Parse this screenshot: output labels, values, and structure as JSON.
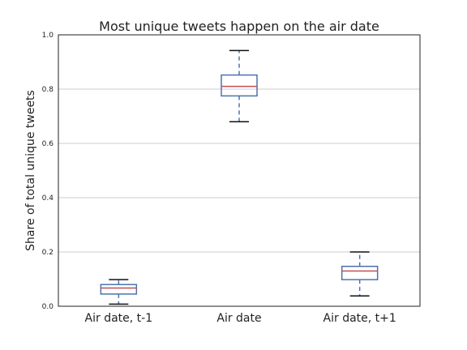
{
  "chart_data": {
    "type": "box",
    "title": "Most unique tweets happen on the air date",
    "xlabel": "",
    "ylabel": "Share of total unique tweets",
    "ylim": [
      0.0,
      1.0
    ],
    "yticks": [
      "0.0",
      "0.2",
      "0.4",
      "0.6",
      "0.8",
      "1.0"
    ],
    "grid": "horizontal",
    "categories": [
      "Air date, t-1",
      "Air date",
      "Air date, t+1"
    ],
    "boxes": [
      {
        "whisker_low": 0.008,
        "q1": 0.045,
        "median": 0.067,
        "q3": 0.08,
        "whisker_high": 0.098
      },
      {
        "whisker_low": 0.68,
        "q1": 0.775,
        "median": 0.81,
        "q3": 0.852,
        "whisker_high": 0.942
      },
      {
        "whisker_low": 0.038,
        "q1": 0.098,
        "median": 0.13,
        "q3": 0.147,
        "whisker_high": 0.2
      }
    ],
    "colors": {
      "box": "#4c72b0",
      "median": "#c44e52",
      "whisker": "#4c72b0",
      "cap": "#111111",
      "grid": "#cccccc",
      "frame": "#222222"
    }
  }
}
